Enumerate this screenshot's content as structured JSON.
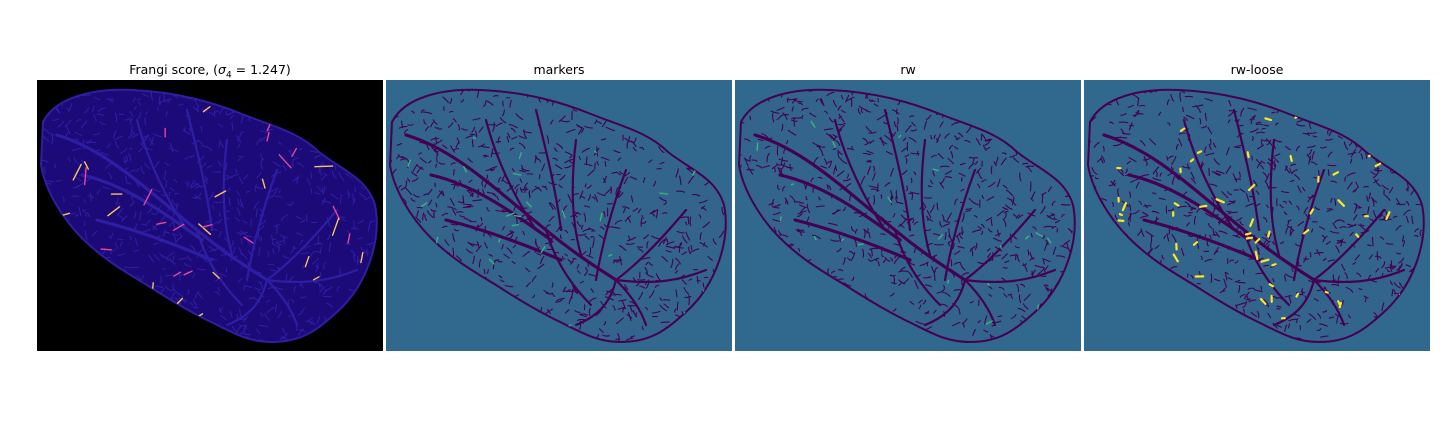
{
  "figure": {
    "panels": [
      {
        "title_prefix": "Frangi score, (",
        "title_sigma": "σ",
        "title_sub": "4",
        "title_suffix": " = 1.247)",
        "colormap": "magma",
        "colors": {
          "background": "#000000",
          "tissue": "#1b0a78",
          "vessel": "#2e1ea3",
          "highlight": "#e8459c",
          "bright": "#fcc35a"
        }
      },
      {
        "title": "markers",
        "colormap": "viridis",
        "colors": {
          "background": "#31688e",
          "tissue": "#33648c",
          "vessel": "#440154",
          "highlight": "#35b779"
        }
      },
      {
        "title": "rw",
        "colormap": "viridis",
        "colors": {
          "background": "#31688e",
          "tissue": "#33648c",
          "vessel": "#440154",
          "highlight": "#35b779"
        }
      },
      {
        "title": "rw-loose",
        "colormap": "viridis",
        "colors": {
          "background": "#31688e",
          "tissue": "#33648c",
          "vessel": "#440154",
          "highlight": "#fde725"
        }
      }
    ]
  }
}
